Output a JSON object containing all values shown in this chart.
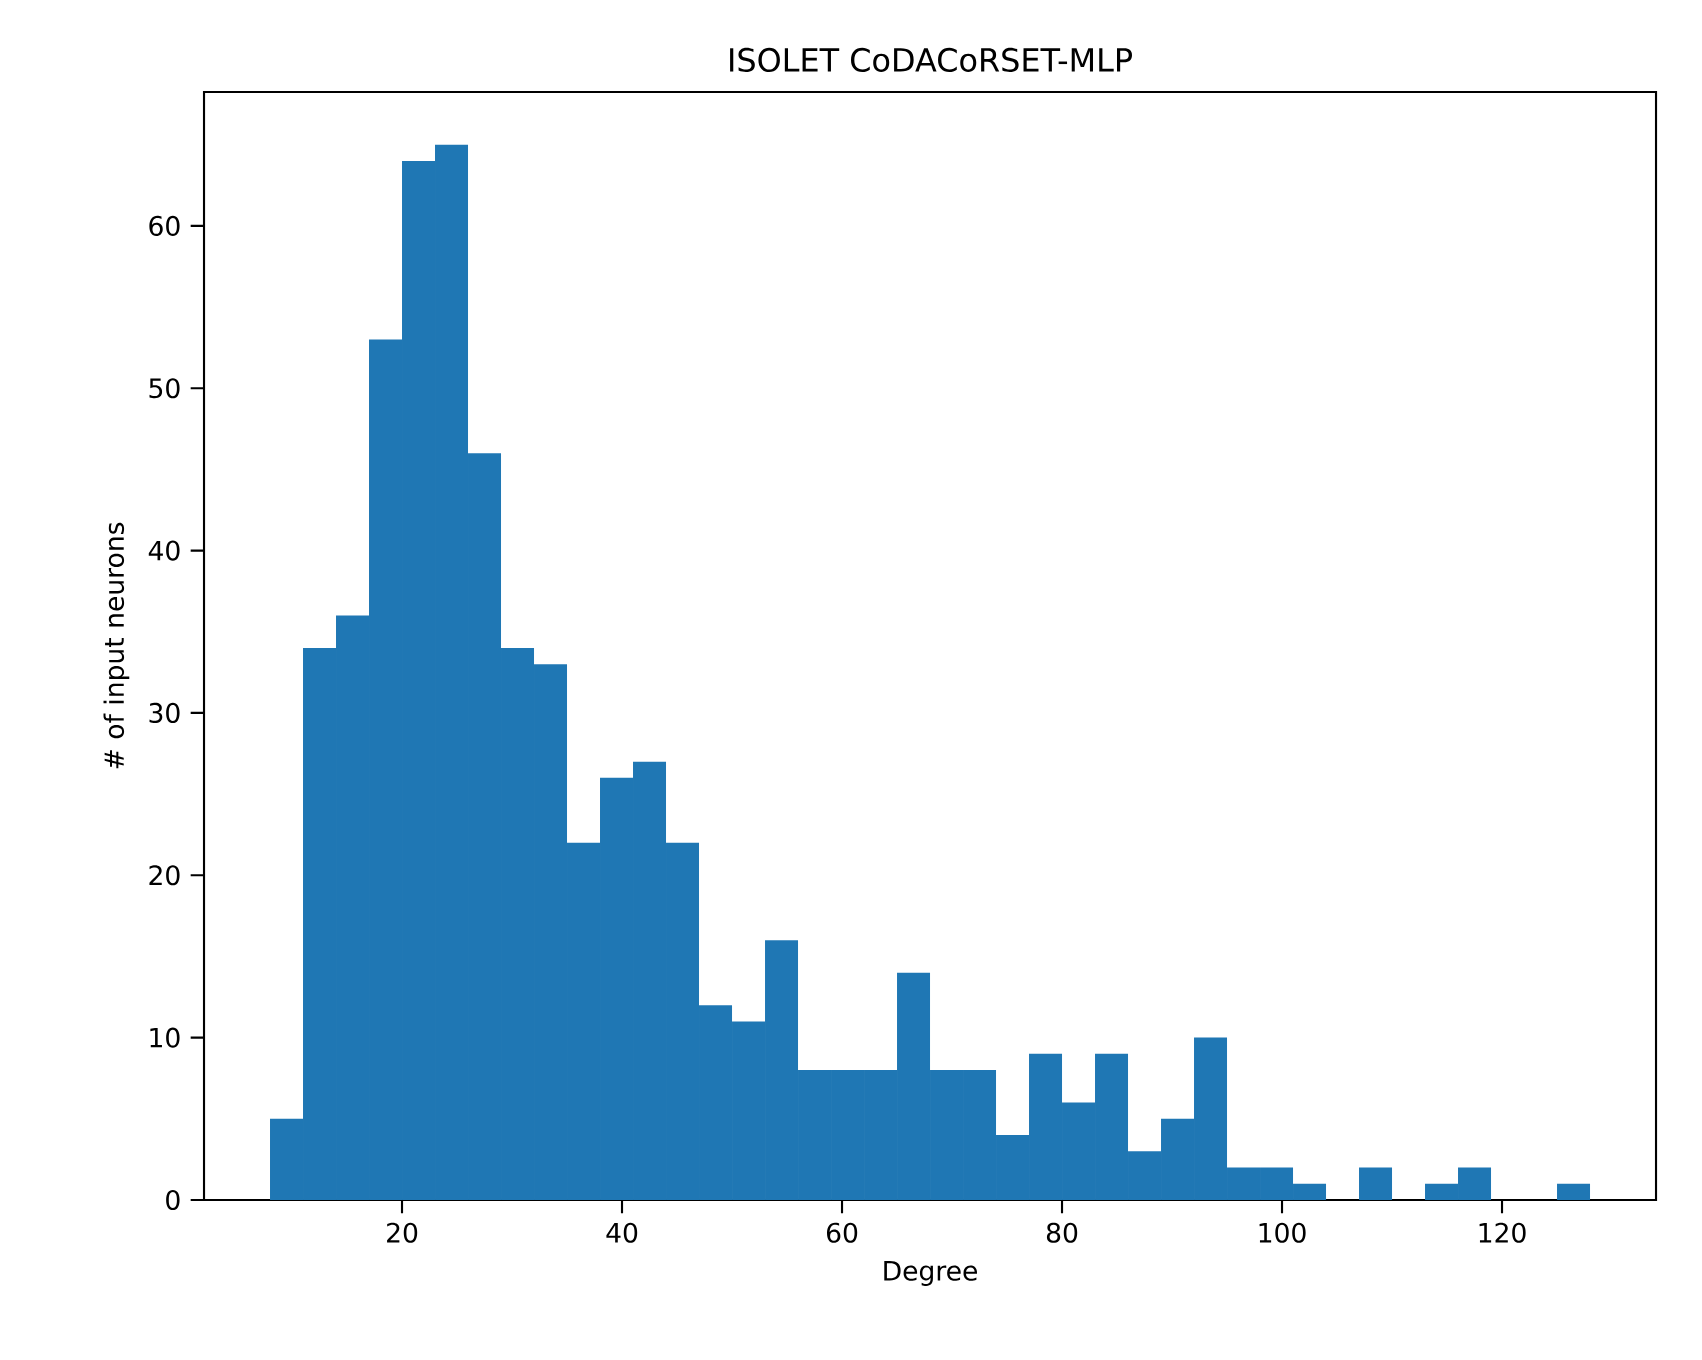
{
  "chart_data": {
    "type": "histogram",
    "title": "ISOLET CoDACoRSET-MLP",
    "xlabel": "Degree",
    "ylabel": "# of input neurons",
    "bins": [
      8,
      11,
      14,
      17,
      20,
      23,
      26,
      29,
      32,
      35,
      38,
      41,
      44,
      47,
      50,
      53,
      56,
      59,
      62,
      65,
      68,
      71,
      74,
      77,
      80,
      83,
      86,
      89,
      92,
      95,
      98,
      101,
      104,
      107,
      110,
      113,
      116,
      119,
      122,
      125,
      128
    ],
    "values": [
      5,
      34,
      36,
      53,
      64,
      65,
      46,
      34,
      33,
      22,
      26,
      27,
      22,
      12,
      11,
      16,
      8,
      8,
      8,
      14,
      8,
      8,
      4,
      9,
      6,
      9,
      3,
      5,
      10,
      2,
      2,
      1,
      0,
      2,
      0,
      1,
      2,
      0,
      0,
      1
    ],
    "color": "#1f77b4",
    "xlim": [
      2,
      134
    ],
    "ylim": [
      0,
      68.25
    ],
    "xticks": [
      20,
      40,
      60,
      80,
      100,
      120
    ],
    "yticks": [
      0,
      10,
      20,
      30,
      40,
      50,
      60
    ]
  }
}
